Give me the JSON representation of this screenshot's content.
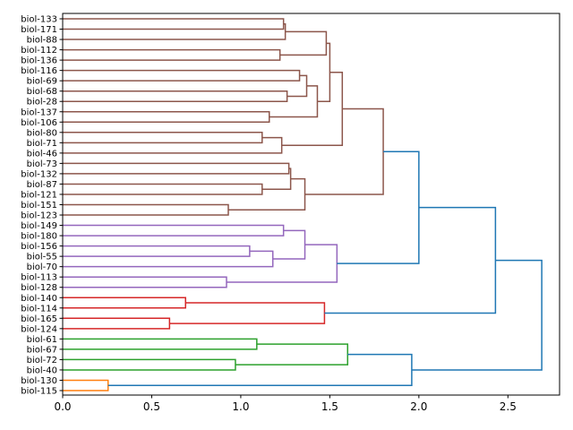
{
  "chart_data": {
    "type": "dendrogram",
    "orientation": "right",
    "title": "",
    "xlabel": "",
    "ylabel": "",
    "xlim": [
      0,
      2.79
    ],
    "xticks": [
      0.0,
      0.5,
      1.0,
      1.5,
      2.0,
      2.5
    ],
    "xtick_labels": [
      "0.0",
      "0.5",
      "1.0",
      "1.5",
      "2.0",
      "2.5"
    ],
    "grid": false,
    "colors": {
      "brown": "#8c564b",
      "purple": "#9467bd",
      "red": "#d62728",
      "green": "#2ca02c",
      "orange": "#ff7f0e",
      "blue": "#1f77b4"
    },
    "leaves": [
      "biol-133",
      "biol-171",
      "biol-88",
      "biol-112",
      "biol-136",
      "biol-116",
      "biol-69",
      "biol-68",
      "biol-28",
      "biol-137",
      "biol-106",
      "biol-80",
      "biol-71",
      "biol-46",
      "biol-73",
      "biol-132",
      "biol-87",
      "biol-121",
      "biol-151",
      "biol-123",
      "biol-149",
      "biol-180",
      "biol-156",
      "biol-55",
      "biol-70",
      "biol-113",
      "biol-128",
      "biol-140",
      "biol-114",
      "biol-165",
      "biol-124",
      "biol-61",
      "biol-67",
      "biol-72",
      "biol-40",
      "biol-130",
      "biol-115"
    ],
    "tree": {
      "h": 2.69,
      "c": "blue",
      "k": [
        {
          "h": 2.43,
          "c": "blue",
          "k": [
            {
              "h": 2.0,
              "c": "blue",
              "k": [
                {
                  "h": 1.8,
                  "c": "brown",
                  "k": [
                    {
                      "h": 1.57,
                      "c": "brown",
                      "k": [
                        {
                          "h": 1.5,
                          "c": "brown",
                          "k": [
                            {
                              "h": 1.48,
                              "c": "brown",
                              "k": [
                                {
                                  "h": 1.25,
                                  "c": "brown",
                                  "k": [
                                    {
                                      "h": 1.24,
                                      "c": "brown",
                                      "k": [
                                        "biol-133",
                                        "biol-171"
                                      ]
                                    },
                                    "biol-88"
                                  ]
                                },
                                {
                                  "h": 1.22,
                                  "c": "brown",
                                  "k": [
                                    "biol-112",
                                    "biol-136"
                                  ]
                                }
                              ]
                            },
                            {
                              "h": 1.43,
                              "c": "brown",
                              "k": [
                                {
                                  "h": 1.37,
                                  "c": "brown",
                                  "k": [
                                    {
                                      "h": 1.33,
                                      "c": "brown",
                                      "k": [
                                        "biol-116",
                                        "biol-69"
                                      ]
                                    },
                                    {
                                      "h": 1.26,
                                      "c": "brown",
                                      "k": [
                                        "biol-68",
                                        "biol-28"
                                      ]
                                    }
                                  ]
                                },
                                {
                                  "h": 1.16,
                                  "c": "brown",
                                  "k": [
                                    "biol-137",
                                    "biol-106"
                                  ]
                                }
                              ]
                            }
                          ]
                        },
                        {
                          "h": 1.23,
                          "c": "brown",
                          "k": [
                            {
                              "h": 1.12,
                              "c": "brown",
                              "k": [
                                "biol-80",
                                "biol-71"
                              ]
                            },
                            "biol-46"
                          ]
                        }
                      ]
                    },
                    {
                      "h": 1.36,
                      "c": "brown",
                      "k": [
                        {
                          "h": 1.28,
                          "c": "brown",
                          "k": [
                            {
                              "h": 1.27,
                              "c": "brown",
                              "k": [
                                "biol-73",
                                "biol-132"
                              ]
                            },
                            {
                              "h": 1.12,
                              "c": "brown",
                              "k": [
                                "biol-87",
                                "biol-121"
                              ]
                            }
                          ]
                        },
                        {
                          "h": 0.93,
                          "c": "brown",
                          "k": [
                            "biol-151",
                            "biol-123"
                          ]
                        }
                      ]
                    }
                  ]
                },
                {
                  "h": 1.54,
                  "c": "purple",
                  "k": [
                    {
                      "h": 1.36,
                      "c": "purple",
                      "k": [
                        {
                          "h": 1.24,
                          "c": "purple",
                          "k": [
                            "biol-149",
                            "biol-180"
                          ]
                        },
                        {
                          "h": 1.18,
                          "c": "purple",
                          "k": [
                            {
                              "h": 1.05,
                              "c": "purple",
                              "k": [
                                "biol-156",
                                "biol-55"
                              ]
                            },
                            "biol-70"
                          ]
                        }
                      ]
                    },
                    {
                      "h": 0.92,
                      "c": "purple",
                      "k": [
                        "biol-113",
                        "biol-128"
                      ]
                    }
                  ]
                }
              ]
            },
            {
              "h": 1.47,
              "c": "red",
              "k": [
                {
                  "h": 0.69,
                  "c": "red",
                  "k": [
                    "biol-140",
                    "biol-114"
                  ]
                },
                {
                  "h": 0.6,
                  "c": "red",
                  "k": [
                    "biol-165",
                    "biol-124"
                  ]
                }
              ]
            }
          ]
        },
        {
          "h": 1.96,
          "c": "blue",
          "k": [
            {
              "h": 1.6,
              "c": "green",
              "k": [
                {
                  "h": 1.09,
                  "c": "green",
                  "k": [
                    "biol-61",
                    "biol-67"
                  ]
                },
                {
                  "h": 0.97,
                  "c": "green",
                  "k": [
                    "biol-72",
                    "biol-40"
                  ]
                }
              ]
            },
            {
              "h": 0.255,
              "c": "orange",
              "k": [
                "biol-130",
                "biol-115"
              ]
            }
          ]
        }
      ]
    }
  }
}
